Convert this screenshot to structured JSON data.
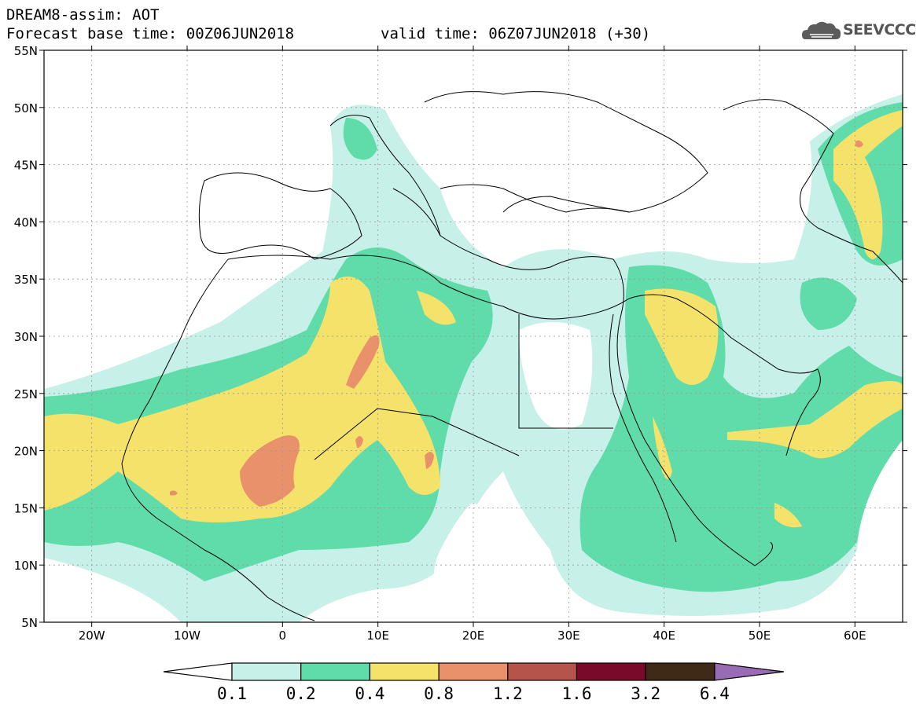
{
  "title": {
    "line1": "DREAM8-assim: AOT",
    "line2": "Forecast base time: 00Z06JUN2018",
    "line3": "valid time: 06Z07JUN2018 (+30)"
  },
  "logo": {
    "text": "SEEVCCC",
    "icon": "cloud-icon"
  },
  "map": {
    "lat_labels": [
      "55N",
      "50N",
      "45N",
      "40N",
      "35N",
      "30N",
      "25N",
      "20N",
      "15N",
      "10N",
      "5N"
    ],
    "lon_labels": [
      "20W",
      "10W",
      "0",
      "10E",
      "20E",
      "30E",
      "40E",
      "50E",
      "60E"
    ],
    "lat_range": [
      5,
      55
    ],
    "lon_range": [
      -25,
      65
    ],
    "grid": "dotted"
  },
  "colorbar": {
    "labels": [
      "0.1",
      "0.2",
      "0.4",
      "0.8",
      "1.2",
      "1.6",
      "3.2",
      "6.4"
    ],
    "colors": [
      "#c7f0e8",
      "#5fdcaa",
      "#f5e26b",
      "#e8916a",
      "#b5544a",
      "#7a0a2a",
      "#3e2a17",
      "#9a6bb5"
    ],
    "extend": "both"
  }
}
